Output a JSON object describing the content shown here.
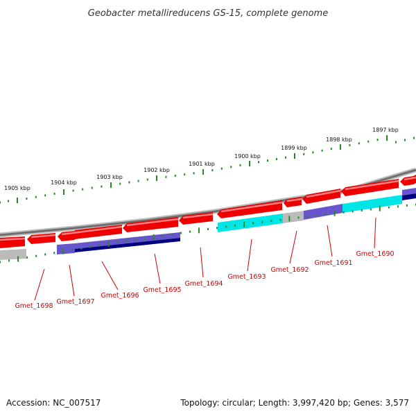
{
  "title": "Geobacter metallireducens GS-15, complete genome",
  "footer": {
    "accession": "Accession: NC_007517",
    "topology": "Topology: circular; Length: 3,997,420 bp; Genes: 3,577"
  },
  "colors": {
    "backbone": "#888888",
    "forward_gene": "#ee0000",
    "forward_gene_highlight": "#ff7777",
    "cds_cyan": "#00e5e5",
    "cds_blue": "#6655cc",
    "cds_navy": "#000080",
    "cds_gray": "#bbbbbb",
    "tick": "#228b22",
    "label": "#cc0000"
  },
  "kbp_ticks": [
    {
      "label": "1905 kbp",
      "kbp": 1905
    },
    {
      "label": "1904 kbp",
      "kbp": 1904
    },
    {
      "label": "1903 kbp",
      "kbp": 1903
    },
    {
      "label": "1902 kbp",
      "kbp": 1902
    },
    {
      "label": "1901 kbp",
      "kbp": 1901
    },
    {
      "label": "1900 kbp",
      "kbp": 1900
    },
    {
      "label": "1899 kbp",
      "kbp": 1899
    },
    {
      "label": "1898 kbp",
      "kbp": 1898
    },
    {
      "label": "1897 kbp",
      "kbp": 1897
    }
  ],
  "genes": [
    {
      "label": "Gmet_1698"
    },
    {
      "label": "Gmet_1697"
    },
    {
      "label": "Gmet_1696"
    },
    {
      "label": "Gmet_1695"
    },
    {
      "label": "Gmet_1694"
    },
    {
      "label": "Gmet_1693"
    },
    {
      "label": "Gmet_1692"
    },
    {
      "label": "Gmet_1691"
    },
    {
      "label": "Gmet_1690"
    }
  ]
}
